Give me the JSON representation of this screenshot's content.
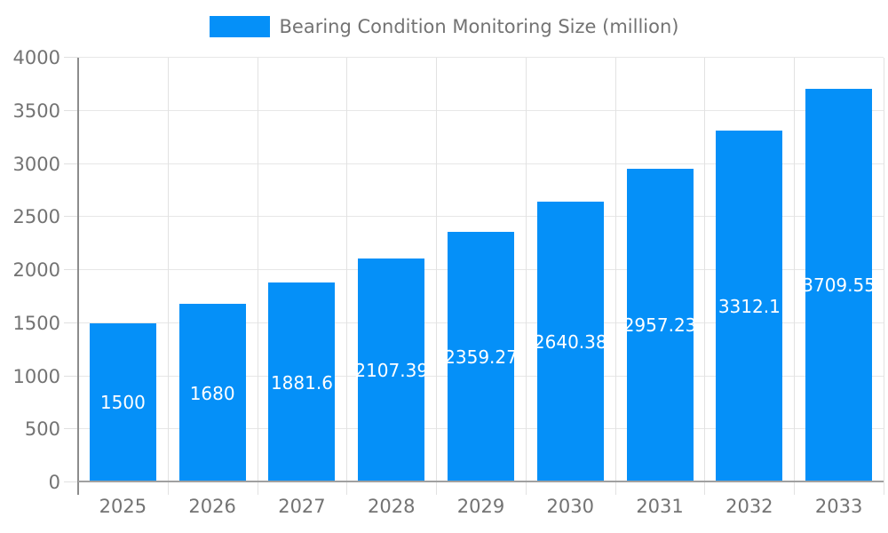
{
  "legend": {
    "label": "Bearing Condition Monitoring Size (million)"
  },
  "colors": {
    "bar": "#0590F8",
    "bar_label_text": "#ffffff",
    "axis_text": "#737373",
    "axis_line": "#8c8c8c",
    "gridline": "#e7e7e7"
  },
  "chart_data": {
    "type": "bar",
    "title": "Bearing Condition Monitoring Size (million)",
    "categories": [
      "2025",
      "2026",
      "2027",
      "2028",
      "2029",
      "2030",
      "2031",
      "2032",
      "2033"
    ],
    "values": [
      1500,
      1680,
      1881.6,
      2107.39,
      2359.27,
      2640.38,
      2957.23,
      3312.1,
      3709.55
    ],
    "value_labels": [
      "1500",
      "1680",
      "1881.6",
      "2107.39",
      "2359.27",
      "2640.38",
      "2957.23",
      "3312.1",
      "3709.55"
    ],
    "xlabel": "",
    "ylabel": "",
    "ylim": [
      0,
      4000
    ],
    "ytick_step": 500,
    "ytick_labels": [
      "0",
      "500",
      "1000",
      "1500",
      "2000",
      "2500",
      "3000",
      "3500",
      "4000"
    ],
    "grid": true,
    "legend_position": "top-center",
    "value_label_position": "inside-center"
  }
}
